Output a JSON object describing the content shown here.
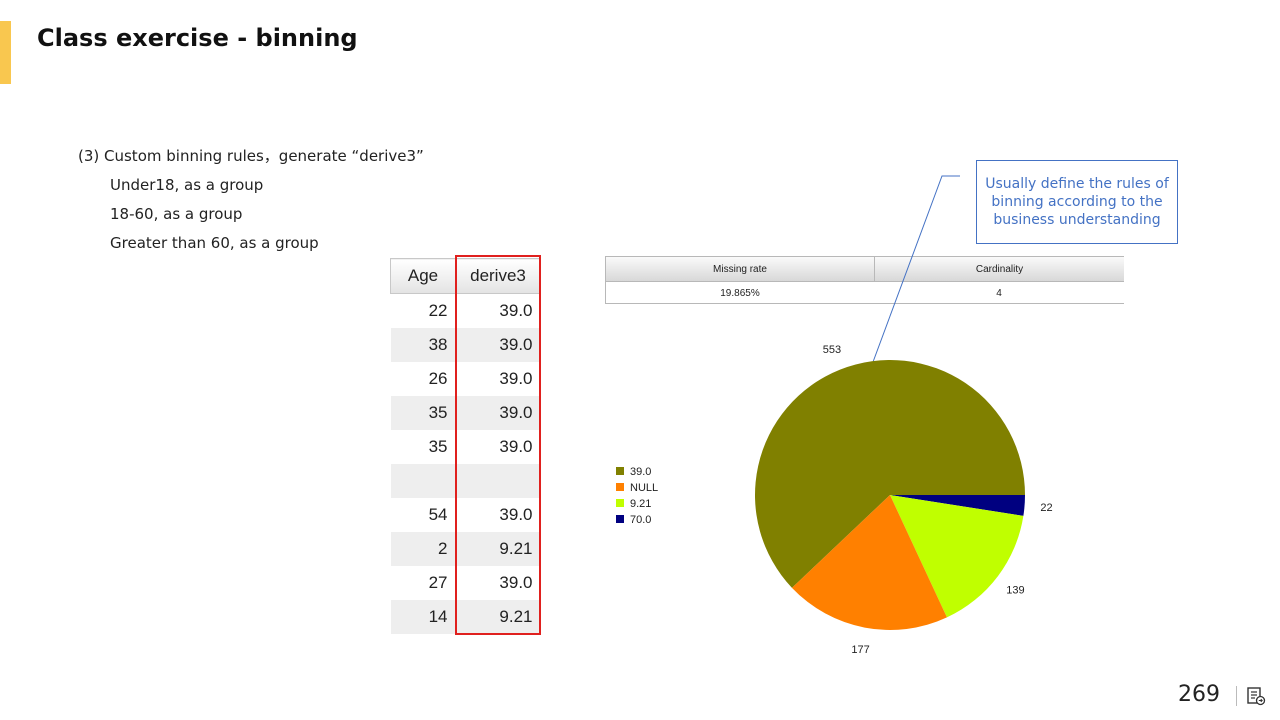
{
  "slide": {
    "title": "Class exercise - binning",
    "page_number": "269"
  },
  "bullets": {
    "l1": "(3)  Custom binning rules，generate  “derive3”",
    "l2": "Under18, as a group",
    "l3": "18-60, as a group",
    "l4": "Greater than 60, as a group"
  },
  "table": {
    "headers": [
      "Age",
      "derive3"
    ],
    "rows": [
      [
        "22",
        "39.0"
      ],
      [
        "38",
        "39.0"
      ],
      [
        "26",
        "39.0"
      ],
      [
        "35",
        "39.0"
      ],
      [
        "35",
        "39.0"
      ],
      [
        "",
        ""
      ],
      [
        "54",
        "39.0"
      ],
      [
        "2",
        "9.21"
      ],
      [
        "27",
        "39.0"
      ],
      [
        "14",
        "9.21"
      ]
    ]
  },
  "summary": {
    "headers": [
      "Missing rate",
      "Cardinality"
    ],
    "values": [
      "19.865%",
      "4"
    ]
  },
  "callout": {
    "text": "Usually define the rules of binning according to the business understanding",
    "color": "#4472c4"
  },
  "chart_data": {
    "type": "pie",
    "title": "",
    "categories": [
      "39.0",
      "NULL",
      "9.21",
      "70.0"
    ],
    "values": [
      553,
      177,
      139,
      22
    ],
    "colors": [
      "#808000",
      "#ff8000",
      "#c0ff00",
      "#000080"
    ],
    "legend_placement": "left"
  }
}
